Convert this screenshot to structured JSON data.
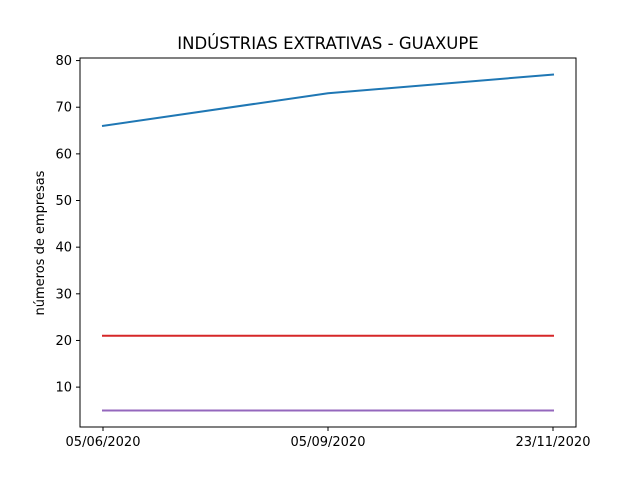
{
  "chart_data": {
    "type": "line",
    "title": "INDÚSTRIAS EXTRATIVAS - GUAXUPE",
    "xlabel": "",
    "ylabel": "números de empresas",
    "x": [
      "05/06/2020",
      "05/09/2020",
      "23/11/2020"
    ],
    "ylim": [
      1.45,
      80.55
    ],
    "yticks": [
      10,
      20,
      30,
      40,
      50,
      60,
      70,
      80
    ],
    "grid": false,
    "series": [
      {
        "color": "#1f77b4",
        "values": [
          66,
          73,
          77
        ]
      },
      {
        "color": "#d62728",
        "values": [
          21,
          21,
          21
        ]
      },
      {
        "color": "#9467bd",
        "values": [
          5,
          5,
          5
        ]
      }
    ]
  }
}
